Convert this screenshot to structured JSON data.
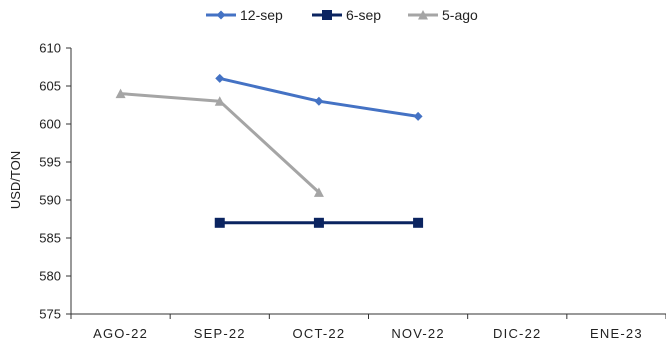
{
  "chart_data": {
    "type": "line",
    "categories": [
      "AGO-22",
      "SEP-22",
      "OCT-22",
      "NOV-22",
      "DIC-22",
      "ENE-23"
    ],
    "ylabel": "USD/TON",
    "ylim": [
      575,
      610
    ],
    "yticks": [
      575,
      580,
      585,
      590,
      595,
      600,
      605,
      610
    ],
    "grid": false,
    "legend_position": "top",
    "series": [
      {
        "name": "12-sep",
        "color": "#4472C4",
        "marker": "diamond",
        "values": [
          null,
          606,
          603,
          601,
          null,
          null
        ]
      },
      {
        "name": "6-sep",
        "color": "#0B2460",
        "marker": "square",
        "values": [
          null,
          587,
          587,
          587,
          null,
          null
        ]
      },
      {
        "name": "5-ago",
        "color": "#A5A5A5",
        "marker": "triangle",
        "values": [
          604,
          603,
          591,
          null,
          null,
          null
        ]
      }
    ]
  }
}
